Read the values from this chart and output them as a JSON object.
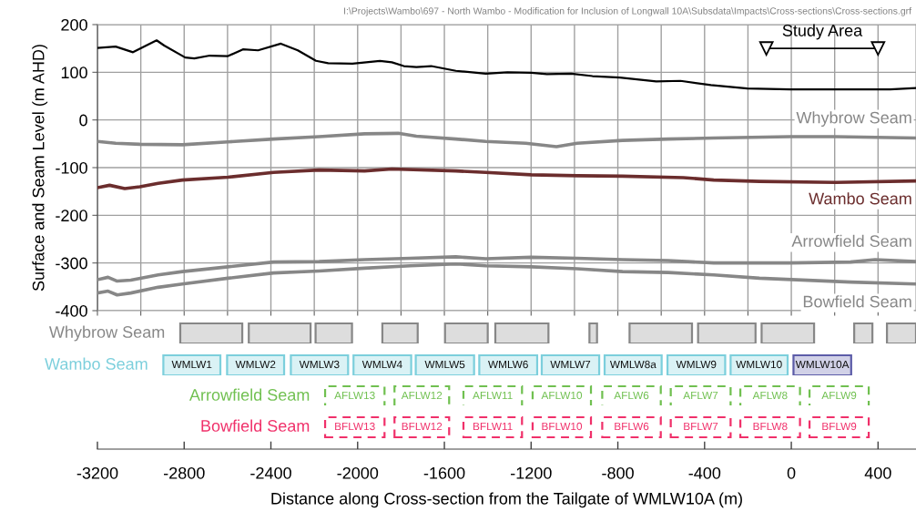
{
  "chart_data": [
    {
      "type": "line",
      "ylabel": "Surface and Seam Level (m AHD)",
      "xlim": [
        -3200,
        575
      ],
      "ylim": [
        -400,
        200
      ],
      "xticks": [
        -3200,
        -3000,
        -2800,
        -2600,
        -2400,
        -2200,
        -2000,
        -1800,
        -1600,
        -1400,
        -1200,
        -1000,
        -800,
        -600,
        -400,
        -200,
        0,
        200,
        400
      ],
      "yticks": [
        -400,
        -300,
        -200,
        -100,
        0,
        100,
        200
      ],
      "tick_labels": "y",
      "grid": true,
      "annotations": [
        "I:\\Projects\\Wambo\\697 - North Wambo - Modification for Inclusion of Longwall 10A\\Subsdata\\Impacts\\Cross-sections\\Cross-sections.grf"
      ],
      "series": [
        {
          "name": "Study Area",
          "color": "#000000",
          "marker": "triangle",
          "x": [
            -115,
            400
          ],
          "values": [
            150,
            150
          ]
        },
        {
          "color": "#000000",
          "x": [
            -3200,
            -3116,
            -3036,
            -2927,
            -2892,
            -2795,
            -2753,
            -2682,
            -2598,
            -2529,
            -2459,
            -2354,
            -2276,
            -2192,
            -2136,
            -2024,
            -1897,
            -1842,
            -1787,
            -1729,
            -1661,
            -1547,
            -1409,
            -1309,
            -1199,
            -1127,
            -1015,
            -917,
            -791,
            -623,
            -511,
            -371,
            -203,
            -7,
            204,
            456,
            575
          ],
          "values": [
            151,
            154,
            142,
            167,
            156,
            131,
            129,
            135,
            134,
            148,
            146,
            160,
            146,
            124,
            119,
            118,
            124,
            121,
            113,
            111,
            113,
            103,
            97,
            100,
            99,
            96,
            97,
            92,
            89,
            81,
            82,
            73,
            66,
            64,
            64,
            64,
            67
          ]
        },
        {
          "name": "Whybrow Seam",
          "color": "#878787",
          "x": [
            -3200,
            -3116,
            -3004,
            -2808,
            -2598,
            -2388,
            -2178,
            -1968,
            -1813,
            -1729,
            -1547,
            -1409,
            -1225,
            -1083,
            -988,
            -778,
            -568,
            -358,
            -7,
            204,
            575
          ],
          "values": [
            -45,
            -49,
            -51,
            -52,
            -46,
            -40,
            -35,
            -29,
            -28,
            -34,
            -40,
            -45,
            -49,
            -56,
            -49,
            -43,
            -40,
            -38,
            -35,
            -35,
            -38
          ]
        },
        {
          "name": "Wambo Seam",
          "color": "#6b2d2d",
          "x": [
            -3200,
            -3144,
            -3074,
            -3004,
            -2920,
            -2808,
            -2598,
            -2388,
            -2178,
            -1968,
            -1842,
            -1547,
            -1409,
            -1199,
            -988,
            -778,
            -498,
            -358,
            -147,
            204,
            575
          ],
          "values": [
            -142,
            -137,
            -144,
            -140,
            -133,
            -126,
            -120,
            -110,
            -105,
            -107,
            -103,
            -107,
            -110,
            -115,
            -117,
            -118,
            -121,
            -126,
            -129,
            -131,
            -128
          ]
        },
        {
          "name": "Arrowfield Seam",
          "color": "#878787",
          "x": [
            -3200,
            -3151,
            -3109,
            -3046,
            -2920,
            -2808,
            -2598,
            -2388,
            -2178,
            -1968,
            -1757,
            -1547,
            -1409,
            -1199,
            -988,
            -778,
            -568,
            -358,
            -7,
            273,
            386,
            575
          ],
          "values": [
            -335,
            -330,
            -338,
            -336,
            -325,
            -318,
            -308,
            -298,
            -297,
            -293,
            -290,
            -287,
            -291,
            -288,
            -290,
            -293,
            -295,
            -300,
            -300,
            -298,
            -293,
            -297
          ]
        },
        {
          "name": "Bowfield Seam",
          "color": "#878787",
          "x": [
            -3200,
            -3151,
            -3109,
            -3046,
            -2920,
            -2808,
            -2598,
            -2388,
            -2178,
            -1968,
            -1757,
            -1547,
            -1409,
            -1199,
            -988,
            -778,
            -568,
            -358,
            -147,
            273,
            575
          ],
          "values": [
            -363,
            -359,
            -367,
            -363,
            -351,
            -344,
            -332,
            -321,
            -317,
            -311,
            -306,
            -302,
            -306,
            -308,
            -312,
            -318,
            -320,
            -325,
            -332,
            -340,
            -344
          ]
        }
      ]
    },
    {
      "type": "bar",
      "orientation": "horizontal",
      "categories": [
        "Whybrow Seam"
      ],
      "xlim": [
        -3200,
        575
      ],
      "tick_labels": "y",
      "series": [
        {
          "color": "#878787",
          "base": [
            -2818
          ],
          "values": [
            286
          ]
        },
        {
          "color": "#878787",
          "base": [
            -2502
          ],
          "values": [
            285
          ]
        },
        {
          "color": "#878787",
          "base": [
            -2194
          ],
          "values": [
            168
          ]
        },
        {
          "color": "#878787",
          "base": [
            -1886
          ],
          "values": [
            163
          ]
        },
        {
          "color": "#878787",
          "base": [
            -1597
          ],
          "values": [
            197
          ]
        },
        {
          "color": "#878787",
          "base": [
            -1365
          ],
          "values": [
            245
          ]
        },
        {
          "color": "#878787",
          "base": [
            -931
          ],
          "values": [
            35
          ]
        },
        {
          "color": "#878787",
          "base": [
            -746
          ],
          "values": [
            288
          ]
        },
        {
          "color": "#878787",
          "base": [
            -430
          ],
          "values": [
            265
          ]
        },
        {
          "color": "#878787",
          "base": [
            -137
          ],
          "values": [
            242
          ]
        },
        {
          "color": "#878787",
          "base": [
            290
          ],
          "values": [
            84
          ]
        },
        {
          "color": "#878787",
          "base": [
            441
          ],
          "values": [
            134
          ]
        }
      ]
    },
    {
      "type": "bar",
      "orientation": "horizontal",
      "categories": [
        "Wambo Seam"
      ],
      "xlim": [
        -3200,
        575
      ],
      "tick_labels": "y",
      "series": [
        {
          "color": "#7ccfdc",
          "base": [
            -2896
          ],
          "values": [
            263
          ],
          "value_labels": [
            "WMLW1"
          ]
        },
        {
          "color": "#7ccfdc",
          "base": [
            -2602
          ],
          "values": [
            263
          ],
          "value_labels": [
            "WMLW2"
          ]
        },
        {
          "color": "#7ccfdc",
          "base": [
            -2308
          ],
          "values": [
            264
          ],
          "value_labels": [
            "WMLW3"
          ]
        },
        {
          "color": "#7ccfdc",
          "base": [
            -2019
          ],
          "values": [
            266
          ],
          "value_labels": [
            "WMLW4"
          ]
        },
        {
          "color": "#7ccfdc",
          "base": [
            -1732
          ],
          "values": [
            269
          ],
          "value_labels": [
            "WMLW5"
          ]
        },
        {
          "color": "#7ccfdc",
          "base": [
            -1439
          ],
          "values": [
            267
          ],
          "value_labels": [
            "WMLW6"
          ]
        },
        {
          "color": "#7ccfdc",
          "base": [
            -1151
          ],
          "values": [
            265
          ],
          "value_labels": [
            "WMLW7"
          ]
        },
        {
          "color": "#7ccfdc",
          "base": [
            -861
          ],
          "values": [
            263
          ],
          "value_labels": [
            "WMLW8a"
          ]
        },
        {
          "color": "#7ccfdc",
          "base": [
            -571
          ],
          "values": [
            266
          ],
          "value_labels": [
            "WMLW9"
          ]
        },
        {
          "color": "#7ccfdc",
          "base": [
            -280
          ],
          "values": [
            263
          ],
          "value_labels": [
            "WMLW10"
          ]
        },
        {
          "color": "#5c5ca8",
          "base": [
            10
          ],
          "values": [
            266
          ],
          "value_labels": [
            "WMLW10A"
          ]
        }
      ]
    },
    {
      "type": "bar",
      "orientation": "horizontal",
      "categories": [
        "Arrowfield Seam"
      ],
      "xlim": [
        -3200,
        575
      ],
      "tick_labels": "y",
      "line_style": "dashed",
      "series": [
        {
          "color": "#70c050",
          "base": [
            -2150
          ],
          "values": [
            274
          ],
          "value_labels": [
            "AFLW13"
          ]
        },
        {
          "color": "#70c050",
          "base": [
            -1830
          ],
          "values": [
            252
          ],
          "value_labels": [
            "AFLW12"
          ]
        },
        {
          "color": "#70c050",
          "base": [
            -1512
          ],
          "values": [
            270
          ],
          "value_labels": [
            "AFLW11"
          ]
        },
        {
          "color": "#70c050",
          "base": [
            -1193
          ],
          "values": [
            269
          ],
          "value_labels": [
            "AFLW10"
          ]
        },
        {
          "color": "#70c050",
          "base": [
            -872
          ],
          "values": [
            270
          ],
          "value_labels": [
            "AFLW6"
          ]
        },
        {
          "color": "#70c050",
          "base": [
            -556
          ],
          "values": [
            276
          ],
          "value_labels": [
            "AFLW7"
          ]
        },
        {
          "color": "#70c050",
          "base": [
            -235
          ],
          "values": [
            275
          ],
          "value_labels": [
            "AFLW8"
          ]
        },
        {
          "color": "#70c050",
          "base": [
            84
          ],
          "values": [
            273
          ],
          "value_labels": [
            "AFLW9"
          ]
        }
      ]
    },
    {
      "type": "bar",
      "orientation": "horizontal",
      "categories": [
        "Bowfield Seam"
      ],
      "xlim": [
        -3200,
        575
      ],
      "line_style": "dashed",
      "xlabel": "Distance along Cross-section from the Tailgate of WMLW10A (m)",
      "xticks": [
        -3200,
        -2800,
        -2400,
        -2000,
        -1600,
        -1200,
        -800,
        -400,
        0,
        400
      ],
      "series": [
        {
          "color": "#f0306a",
          "base": [
            -2150
          ],
          "values": [
            274
          ],
          "value_labels": [
            "BFLW13"
          ]
        },
        {
          "color": "#f0306a",
          "base": [
            -1830
          ],
          "values": [
            252
          ],
          "value_labels": [
            "BFLW12"
          ]
        },
        {
          "color": "#f0306a",
          "base": [
            -1512
          ],
          "values": [
            270
          ],
          "value_labels": [
            "BFLW11"
          ]
        },
        {
          "color": "#f0306a",
          "base": [
            -1193
          ],
          "values": [
            269
          ],
          "value_labels": [
            "BFLW10"
          ]
        },
        {
          "color": "#f0306a",
          "base": [
            -872
          ],
          "values": [
            270
          ],
          "value_labels": [
            "BFLW6"
          ]
        },
        {
          "color": "#f0306a",
          "base": [
            -556
          ],
          "values": [
            276
          ],
          "value_labels": [
            "BFLW7"
          ]
        },
        {
          "color": "#f0306a",
          "base": [
            -235
          ],
          "values": [
            275
          ],
          "value_labels": [
            "BFLW8"
          ]
        },
        {
          "color": "#f0306a",
          "base": [
            84
          ],
          "values": [
            273
          ],
          "value_labels": [
            "BFLW9"
          ]
        }
      ]
    }
  ]
}
